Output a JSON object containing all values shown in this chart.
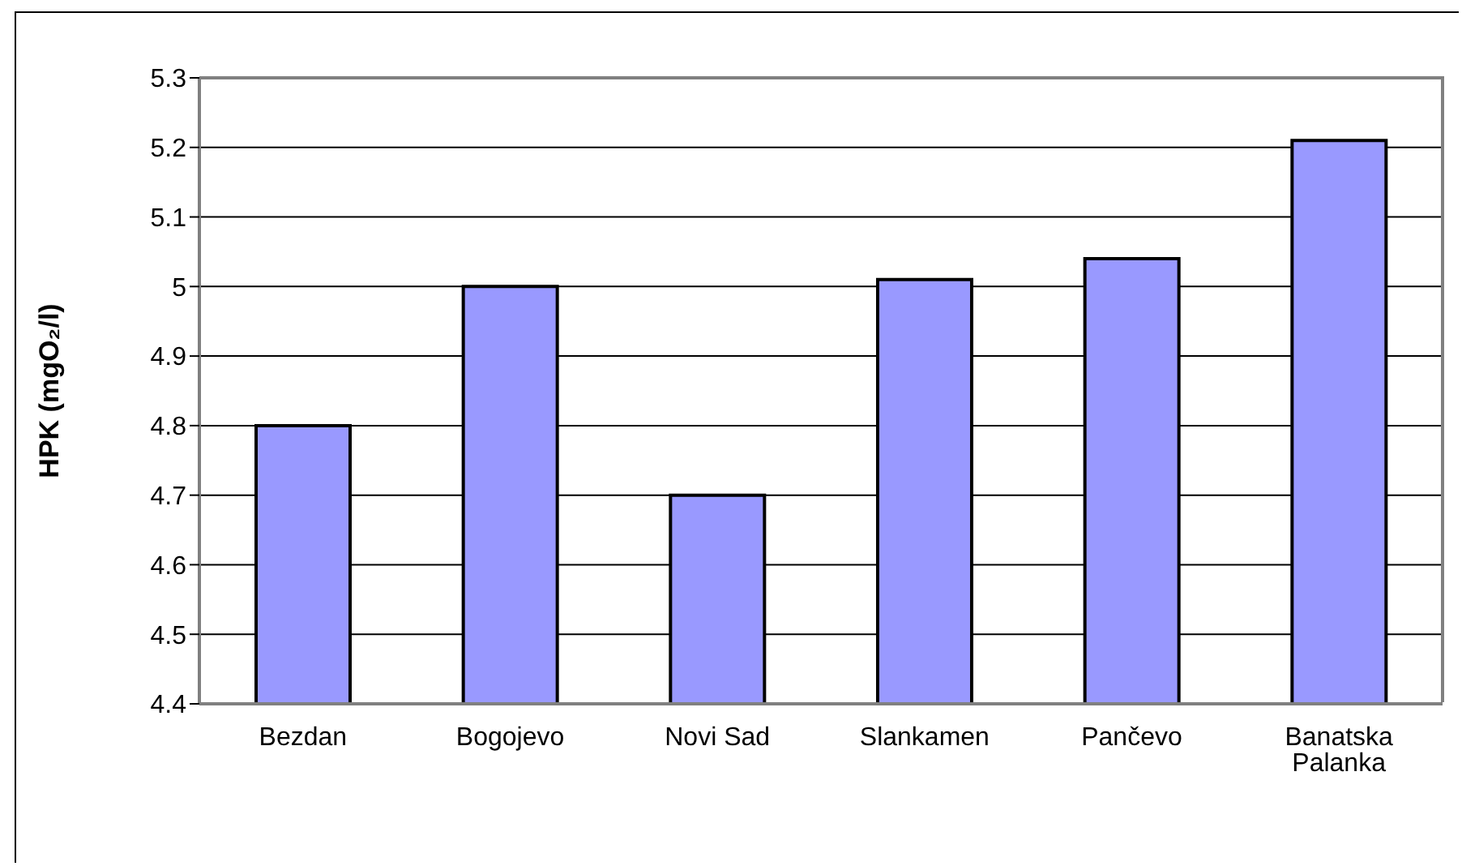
{
  "chart_data": {
    "type": "bar",
    "ylabel": "HPK (mgO₂/l)",
    "categories": [
      "Bezdan",
      "Bogojevo",
      "Novi Sad",
      "Slankamen",
      "Pančevo",
      "Banatska Palanka"
    ],
    "values": [
      4.8,
      5.0,
      4.7,
      5.01,
      5.04,
      5.21
    ],
    "color": "#9999ff",
    "ylim": [
      4.4,
      5.3
    ],
    "yticks": [
      4.4,
      4.5,
      4.6,
      4.7,
      4.8,
      4.9,
      5,
      5.1,
      5.2,
      5.3
    ],
    "grid": "y",
    "legend": false
  }
}
